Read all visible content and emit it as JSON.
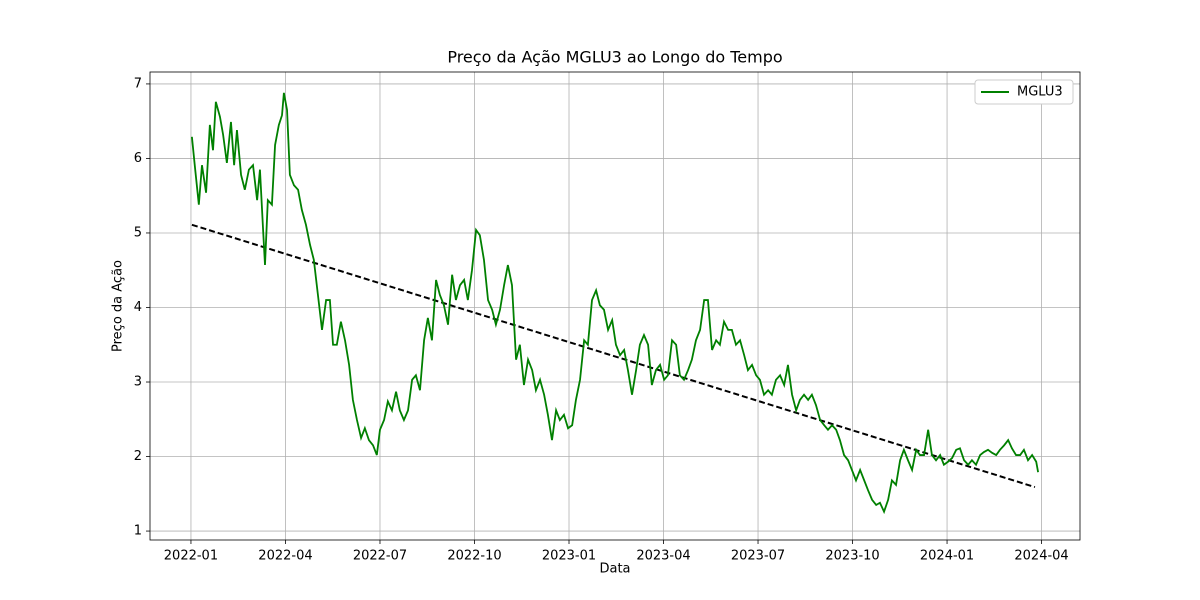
{
  "chart_data": {
    "type": "line",
    "title": "Preço da Ação MGLU3 ao Longo do Tempo",
    "x_label": "Data",
    "y_label": "Preço da Ação",
    "series": [
      {
        "name": "MGLU3",
        "color": "green",
        "x": [
          0.03,
          0.13,
          0.25,
          0.35,
          0.48,
          0.6,
          0.7,
          0.79,
          0.92,
          1.02,
          1.14,
          1.27,
          1.37,
          1.46,
          1.59,
          1.71,
          1.84,
          1.97,
          2.1,
          2.19,
          2.29,
          2.35,
          2.44,
          2.57,
          2.67,
          2.79,
          2.89,
          2.95,
          3.05,
          3.14,
          3.27,
          3.4,
          3.52,
          3.65,
          3.78,
          3.9,
          4.03,
          4.16,
          4.29,
          4.41,
          4.51,
          4.63,
          4.76,
          4.89,
          5.02,
          5.14,
          5.27,
          5.4,
          5.52,
          5.65,
          5.78,
          5.9,
          6.0,
          6.13,
          6.25,
          6.38,
          6.51,
          6.63,
          6.76,
          6.89,
          7.02,
          7.14,
          7.27,
          7.4,
          7.52,
          7.65,
          7.78,
          7.9,
          8.03,
          8.16,
          8.29,
          8.41,
          8.54,
          8.67,
          8.79,
          8.92,
          9.05,
          9.17,
          9.3,
          9.43,
          9.56,
          9.68,
          9.81,
          9.94,
          10.06,
          10.19,
          10.32,
          10.44,
          10.57,
          10.7,
          10.83,
          10.95,
          11.08,
          11.21,
          11.33,
          11.46,
          11.59,
          11.71,
          11.84,
          11.97,
          12.1,
          12.22,
          12.35,
          12.48,
          12.6,
          12.73,
          12.86,
          12.98,
          13.11,
          13.24,
          13.37,
          13.49,
          13.62,
          13.75,
          13.87,
          14.0,
          14.13,
          14.25,
          14.38,
          14.51,
          14.63,
          14.76,
          14.89,
          15.02,
          15.14,
          15.27,
          15.4,
          15.52,
          15.65,
          15.78,
          15.9,
          16.03,
          16.16,
          16.29,
          16.41,
          16.54,
          16.67,
          16.79,
          16.92,
          17.05,
          17.17,
          17.3,
          17.43,
          17.56,
          17.68,
          17.81,
          17.94,
          18.06,
          18.19,
          18.32,
          18.44,
          18.57,
          18.7,
          18.83,
          18.95,
          19.08,
          19.21,
          19.33,
          19.46,
          19.59,
          19.71,
          19.84,
          19.97,
          20.1,
          20.22,
          20.35,
          20.48,
          20.6,
          20.73,
          20.86,
          20.98,
          21.11,
          21.24,
          21.37,
          21.49,
          21.62,
          21.75,
          21.87,
          22.0,
          22.13,
          22.25,
          22.38,
          22.51,
          22.63,
          22.76,
          22.89,
          23.02,
          23.14,
          23.27,
          23.4,
          23.52,
          23.65,
          23.78,
          23.9,
          24.03,
          24.16,
          24.29,
          24.41,
          24.54,
          24.67,
          24.79,
          24.92,
          25.05,
          25.17,
          25.3,
          25.43,
          25.56,
          25.68,
          25.81,
          25.94,
          26.06,
          26.19,
          26.32,
          26.44,
          26.57,
          26.7,
          26.83,
          26.89
        ],
        "values": [
          6.29,
          5.87,
          5.38,
          5.91,
          5.54,
          6.45,
          6.11,
          6.76,
          6.56,
          6.32,
          5.94,
          6.49,
          5.91,
          6.38,
          5.78,
          5.58,
          5.85,
          5.91,
          5.44,
          5.85,
          5.04,
          4.57,
          5.44,
          5.38,
          6.18,
          6.45,
          6.58,
          6.88,
          6.65,
          5.78,
          5.64,
          5.58,
          5.31,
          5.11,
          4.84,
          4.64,
          4.17,
          3.7,
          4.1,
          4.1,
          3.5,
          3.5,
          3.81,
          3.56,
          3.23,
          2.76,
          2.49,
          2.25,
          2.38,
          2.22,
          2.15,
          2.02,
          2.36,
          2.49,
          2.74,
          2.62,
          2.87,
          2.62,
          2.49,
          2.62,
          3.03,
          3.09,
          2.89,
          3.56,
          3.86,
          3.56,
          4.37,
          4.17,
          4.03,
          3.77,
          4.44,
          4.1,
          4.3,
          4.37,
          4.1,
          4.5,
          5.04,
          4.97,
          4.64,
          4.1,
          3.97,
          3.77,
          3.97,
          4.3,
          4.57,
          4.3,
          3.3,
          3.5,
          2.96,
          3.3,
          3.16,
          2.89,
          3.03,
          2.83,
          2.56,
          2.22,
          2.62,
          2.49,
          2.56,
          2.38,
          2.42,
          2.76,
          3.03,
          3.56,
          3.5,
          4.1,
          4.23,
          4.03,
          3.97,
          3.7,
          3.83,
          3.5,
          3.36,
          3.43,
          3.16,
          2.83,
          3.16,
          3.5,
          3.63,
          3.5,
          2.96,
          3.16,
          3.23,
          3.03,
          3.09,
          3.56,
          3.5,
          3.09,
          3.03,
          3.16,
          3.3,
          3.56,
          3.7,
          4.1,
          4.1,
          3.43,
          3.56,
          3.5,
          3.81,
          3.7,
          3.7,
          3.5,
          3.56,
          3.36,
          3.16,
          3.23,
          3.09,
          3.03,
          2.83,
          2.89,
          2.83,
          3.03,
          3.09,
          2.96,
          3.23,
          2.83,
          2.62,
          2.76,
          2.83,
          2.76,
          2.83,
          2.69,
          2.49,
          2.42,
          2.36,
          2.42,
          2.36,
          2.22,
          2.02,
          1.95,
          1.82,
          1.68,
          1.82,
          1.68,
          1.55,
          1.42,
          1.35,
          1.38,
          1.26,
          1.42,
          1.68,
          1.62,
          1.95,
          2.09,
          1.95,
          1.82,
          2.09,
          2.02,
          2.02,
          2.36,
          2.02,
          1.95,
          2.02,
          1.89,
          1.93,
          1.98,
          2.09,
          2.11,
          1.95,
          1.89,
          1.95,
          1.89,
          2.02,
          2.06,
          2.09,
          2.05,
          2.02,
          2.09,
          2.15,
          2.22,
          2.11,
          2.02,
          2.02,
          2.09,
          1.95,
          2.02,
          1.93,
          1.79
        ]
      }
    ],
    "trend": {
      "color": "black",
      "linestyle": "dashed",
      "x": [
        0.03,
        26.79
      ],
      "values": [
        5.11,
        1.59
      ]
    },
    "xlim": [
      -1.3,
      28.22
    ],
    "ylim": [
      0.88,
      7.16
    ],
    "xticks": [
      {
        "value": 0,
        "label": "2022-01"
      },
      {
        "value": 3,
        "label": "2022-04"
      },
      {
        "value": 6,
        "label": "2022-07"
      },
      {
        "value": 9,
        "label": "2022-10"
      },
      {
        "value": 12,
        "label": "2023-01"
      },
      {
        "value": 15,
        "label": "2023-04"
      },
      {
        "value": 18,
        "label": "2023-07"
      },
      {
        "value": 21,
        "label": "2023-10"
      },
      {
        "value": 24,
        "label": "2024-01"
      },
      {
        "value": 27,
        "label": "2024-04"
      }
    ],
    "yticks": [
      1,
      2,
      3,
      4,
      5,
      6,
      7
    ],
    "grid": true,
    "legend": "upper right"
  }
}
